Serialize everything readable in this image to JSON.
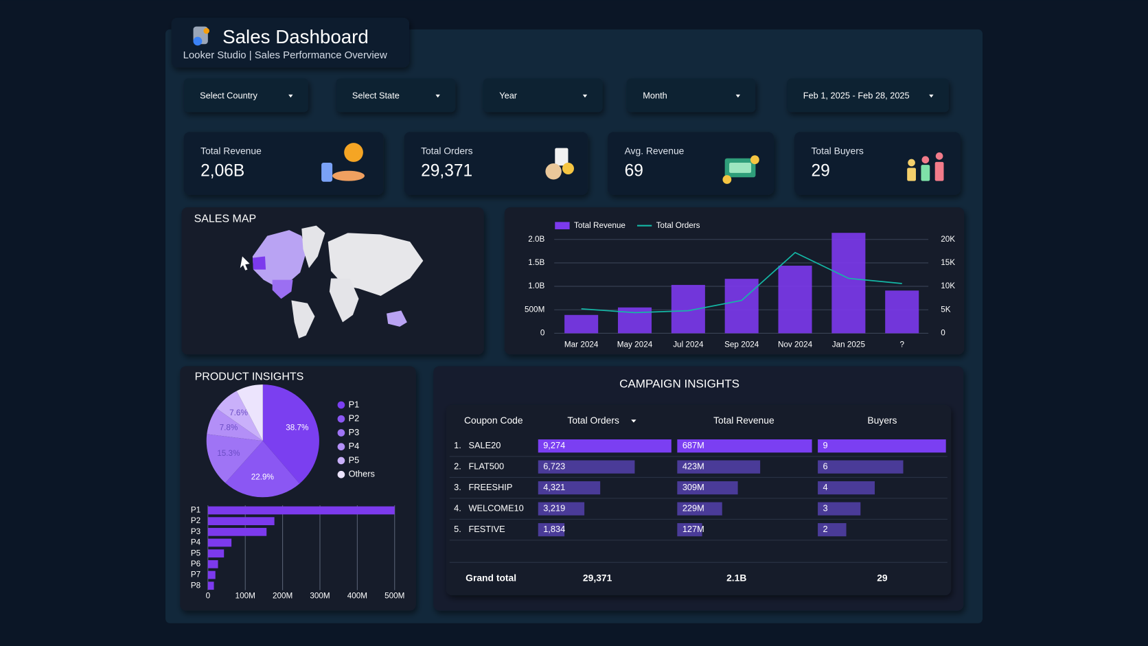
{
  "header": {
    "title": "Sales Dashboard",
    "subtitle": "Looker Studio | Sales Performance Overview"
  },
  "filters": [
    "Select Country",
    "Select State",
    "Year",
    "Month",
    "Feb 1, 2025 - Feb 28, 2025"
  ],
  "kpis": [
    {
      "label": "Total Revenue",
      "value": "2,06B"
    },
    {
      "label": "Total Orders",
      "value": "29,371"
    },
    {
      "label": "Avg. Revenue",
      "value": 69
    },
    {
      "label": "Total Buyers",
      "value": 29
    }
  ],
  "sales_map": {
    "title": "SALES MAP"
  },
  "chart_data": [
    {
      "type": "bar",
      "categories": [
        "Mar 2024",
        "May 2024",
        "Jul 2024",
        "Sep 2024",
        "Nov 2024",
        "Jan 2025",
        "?"
      ],
      "series": [
        {
          "name": "Total Revenue",
          "type": "bar",
          "color": "#7c3aed",
          "values": [
            390000000,
            550000000,
            1030000000,
            1160000000,
            1440000000,
            2140000000,
            910000000
          ]
        },
        {
          "name": "Total Orders",
          "type": "line",
          "axis": "y2",
          "color": "#14b8a6",
          "values": [
            5200,
            4400,
            4800,
            7000,
            17200,
            11700,
            10600
          ]
        }
      ],
      "ylim": [
        0,
        2200000000
      ],
      "yticks": [
        0,
        {
          "value": 500000000,
          "label": "500M"
        },
        {
          "value": 1000000000,
          "label": "1.0B"
        },
        {
          "value": 1500000000,
          "label": "1.5B"
        },
        {
          "value": 2000000000,
          "label": "2.0B"
        }
      ],
      "y2lim": [
        0,
        22000
      ],
      "y2ticks": [
        0,
        {
          "value": 5000,
          "label": "5K"
        },
        {
          "value": 10000,
          "label": "10K"
        },
        {
          "value": 15000,
          "label": "15K"
        },
        {
          "value": 20000,
          "label": "20K"
        }
      ],
      "grid": true
    },
    {
      "type": "pie",
      "title": "PRODUCT INSIGHTS",
      "categories": [
        "P1",
        "P2",
        "P3",
        "P4",
        "P5",
        "Others"
      ],
      "values": [
        38.7,
        22.9,
        15.3,
        7.8,
        7.6,
        7.7
      ],
      "value_labels": [
        "38.7%",
        "22.9%",
        "15.3%",
        "7.8%",
        "7.6%",
        null
      ],
      "colors": [
        "#7b3ff0",
        "#8b57f3",
        "#9f74f5",
        "#b38ff7",
        "#c9b0fa",
        "#ece4fd"
      ]
    },
    {
      "type": "hbar",
      "categories": [
        "P1",
        "P2",
        "P3",
        "P4",
        "P5",
        "P6",
        "P7",
        "P8"
      ],
      "values": [
        500000000,
        178000000,
        157000000,
        63000000,
        43000000,
        27000000,
        20000000,
        16000000
      ],
      "color": "#7c3aed",
      "xlim": [
        0,
        500000000
      ],
      "xticks": [
        0,
        {
          "value": 100000000,
          "label": "100M"
        },
        {
          "value": 200000000,
          "label": "200M"
        },
        {
          "value": 300000000,
          "label": "300M"
        },
        {
          "value": 400000000,
          "label": "400M"
        },
        {
          "value": 500000000,
          "label": "500M"
        }
      ]
    }
  ],
  "campaign": {
    "title": "CAMPAIGN INSIGHTS",
    "columns": [
      "Coupon Code",
      "Total Orders",
      "Total Revenue",
      "Buyers"
    ],
    "rows": [
      {
        "rank": "1.",
        "code": "SALE20",
        "orders": {
          "value": 9274,
          "label": "9,274"
        },
        "revenue": {
          "value": 687000000,
          "label": "687M"
        },
        "buyers": 9
      },
      {
        "rank": "2.",
        "code": "FLAT500",
        "orders": {
          "value": 6723,
          "label": "6,723"
        },
        "revenue": {
          "value": 423000000,
          "label": "423M"
        },
        "buyers": 6
      },
      {
        "rank": "3.",
        "code": "FREESHIP",
        "orders": {
          "value": 4321,
          "label": "4,321"
        },
        "revenue": {
          "value": 309000000,
          "label": "309M"
        },
        "buyers": 4
      },
      {
        "rank": "4.",
        "code": "WELCOME10",
        "orders": {
          "value": 3219,
          "label": "3,219"
        },
        "revenue": {
          "value": 229000000,
          "label": "229M"
        },
        "buyers": 3
      },
      {
        "rank": "5.",
        "code": "FESTIVE",
        "orders": {
          "value": 1834,
          "label": "1,834"
        },
        "revenue": {
          "value": 127000000,
          "label": "127M"
        },
        "buyers": 2
      }
    ],
    "total": {
      "label": "Grand total",
      "orders": "29,371",
      "revenue": "2.1B",
      "buyers": 29
    }
  }
}
